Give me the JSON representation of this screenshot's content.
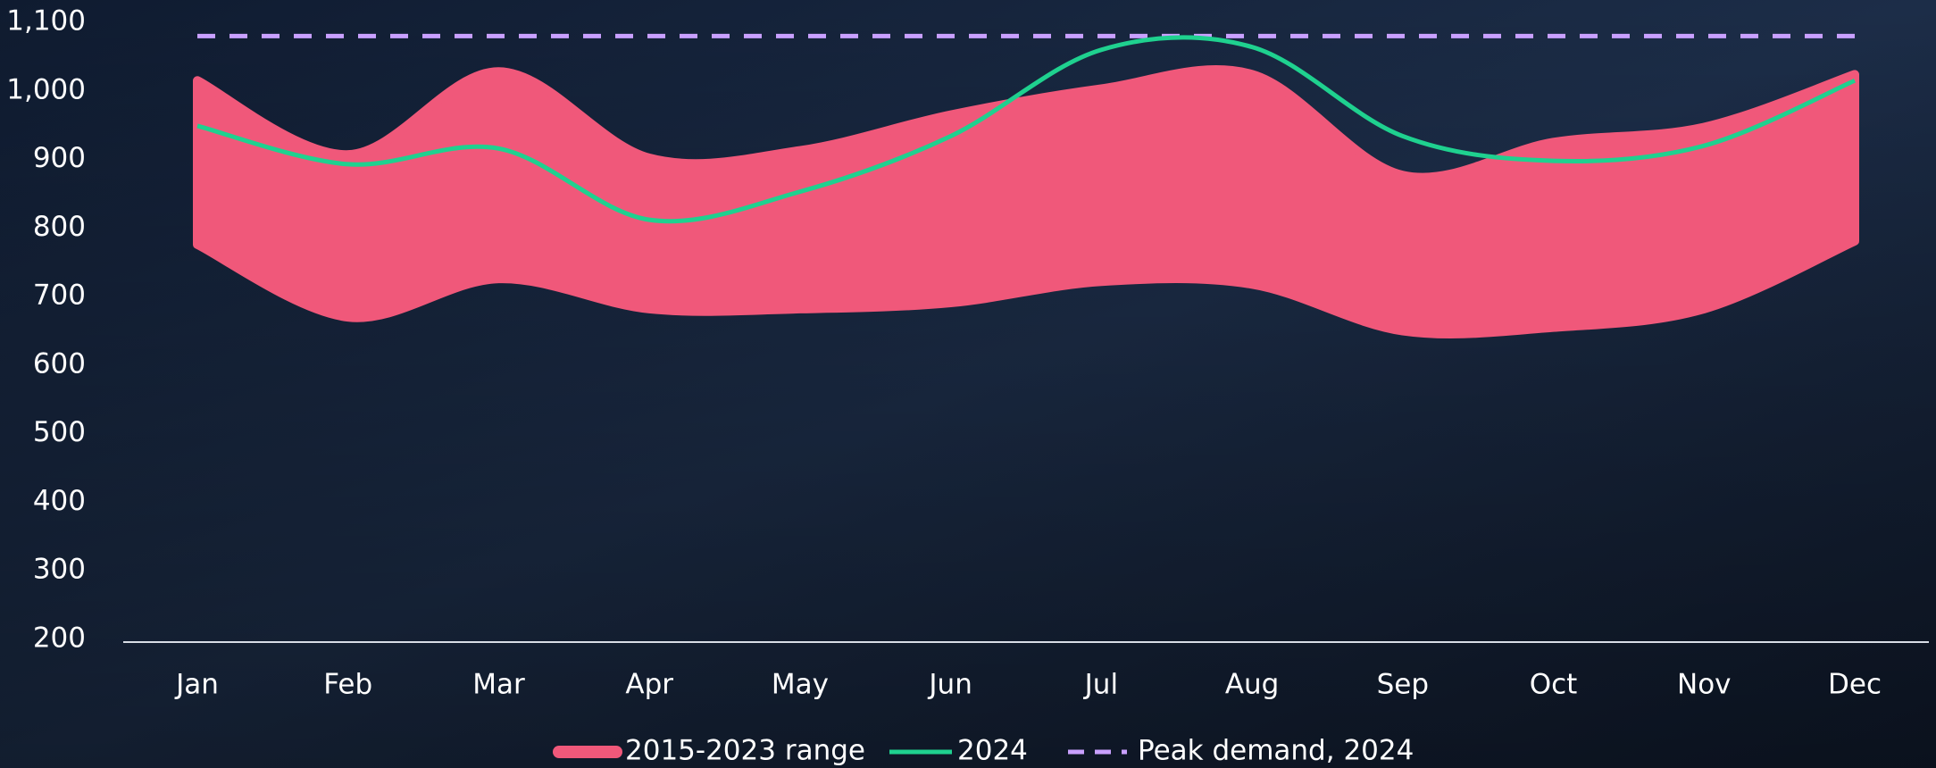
{
  "chart_data": {
    "type": "range",
    "categories": [
      "Jan",
      "Feb",
      "Mar",
      "Apr",
      "May",
      "Jun",
      "Jul",
      "Aug",
      "Sep",
      "Oct",
      "Nov",
      "Dec"
    ],
    "ylim": [
      200,
      1100
    ],
    "yticks": [
      200,
      300,
      400,
      500,
      600,
      700,
      800,
      900,
      {
        "value": 1000,
        "label": "1,000"
      },
      {
        "value": 1100,
        "label": "1,100"
      }
    ],
    "series": [
      {
        "name": "2015-2023 range",
        "color": "#f0587a",
        "high": [
          1015,
          907,
          1028,
          902,
          913,
          965,
          1003,
          1024,
          877,
          925,
          947,
          1024
        ],
        "low": [
          776,
          670,
          726,
          682,
          682,
          691,
          722,
          718,
          650,
          655,
          682,
          781
        ]
      },
      {
        "name": "2024",
        "color": "#1fd18f",
        "values": [
          949,
          893,
          916,
          812,
          853,
          934,
          1060,
          1064,
          934,
          898,
          920,
          1015
        ]
      }
    ],
    "peak": {
      "name": "Peak demand, 2024",
      "color": "#c9a0ff",
      "value": 1080
    }
  }
}
